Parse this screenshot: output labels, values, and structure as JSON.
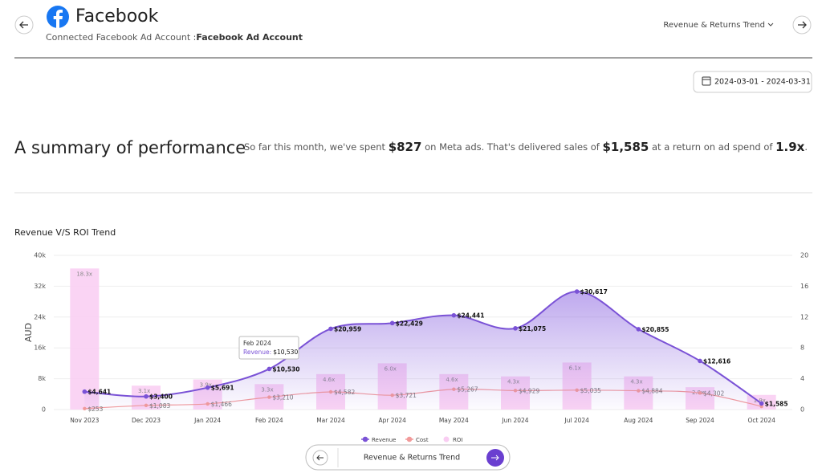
{
  "header": {
    "title": "Facebook",
    "subtitle_prefix": "Connected Facebook Ad Account :",
    "subtitle_account": "Facebook Ad Account",
    "view_select": "Revenue & Returns Trend",
    "date_range": "2024-03-01 - 2024-03-31"
  },
  "summary": {
    "title": "A summary of performance",
    "parts": [
      "So far this month, we've spent ",
      "$827",
      " on Meta ads. That's delivered sales of ",
      "$1,585",
      " at a return on ad spend of ",
      "1.9x",
      "."
    ]
  },
  "footer_nav": {
    "label": "Revenue & Returns Trend"
  },
  "chart_data": {
    "type": "combo",
    "title": "Revenue V/S ROI Trend",
    "y_label": "AUD",
    "categories": [
      "Nov 2023",
      "Dec 2023",
      "Jan 2024",
      "Feb 2024",
      "Mar 2024",
      "Apr 2024",
      "May 2024",
      "Jun 2024",
      "Jul 2024",
      "Aug 2024",
      "Sep 2024",
      "Oct 2024"
    ],
    "ylim": [
      0,
      40000
    ],
    "yticks": [
      0,
      {
        "value": 8000,
        "label": "8k"
      },
      {
        "value": 16000,
        "label": "16k"
      },
      {
        "value": 24000,
        "label": "24k"
      },
      {
        "value": 32000,
        "label": "32k"
      },
      {
        "value": 40000,
        "label": "40k"
      }
    ],
    "y2lim": [
      0,
      20
    ],
    "y2ticks": [
      0,
      4,
      8,
      12,
      16,
      20
    ],
    "grid": true,
    "series": [
      {
        "name": "Revenue",
        "type": "area",
        "color": "#7a52d6",
        "values": [
          4641,
          3400,
          5691,
          10530,
          20959,
          22429,
          24441,
          21075,
          30617,
          20855,
          12616,
          1585
        ],
        "value_labels": [
          "$4,641",
          "$3,400",
          "$5,691",
          "$10,530",
          "$20,959",
          "$22,429",
          "$24,441",
          "$21,075",
          "$30,617",
          "$20,855",
          "$12,616",
          "$1,585"
        ]
      },
      {
        "name": "Cost",
        "type": "line",
        "color": "#f29a9a",
        "values": [
          253,
          1083,
          1466,
          3210,
          4582,
          3721,
          5267,
          4929,
          5035,
          4884,
          4302,
          827
        ],
        "value_labels": [
          "$253",
          "$1,083",
          "$1,466",
          "$3,210",
          "$4,582",
          "$3,721",
          "$5,267",
          "$4,929",
          "$5,035",
          "$4,884",
          "$4,302",
          null
        ]
      },
      {
        "name": "ROI",
        "type": "bar",
        "axis": "y2",
        "color": "#f9cdf2",
        "values": [
          18.3,
          3.1,
          3.9,
          3.3,
          4.6,
          6.0,
          4.6,
          4.3,
          6.1,
          4.3,
          2.9,
          1.9
        ],
        "value_labels": [
          "18.3x",
          "3.1x",
          "3.9x",
          "3.3x",
          "4.6x",
          "6.0x",
          "4.6x",
          "4.3x",
          "6.1x",
          "4.3x",
          "2.9x",
          "1.9x"
        ]
      }
    ],
    "tooltip": {
      "title": "Feb 2024",
      "label": "Revenue:",
      "value": "$10,530"
    }
  }
}
